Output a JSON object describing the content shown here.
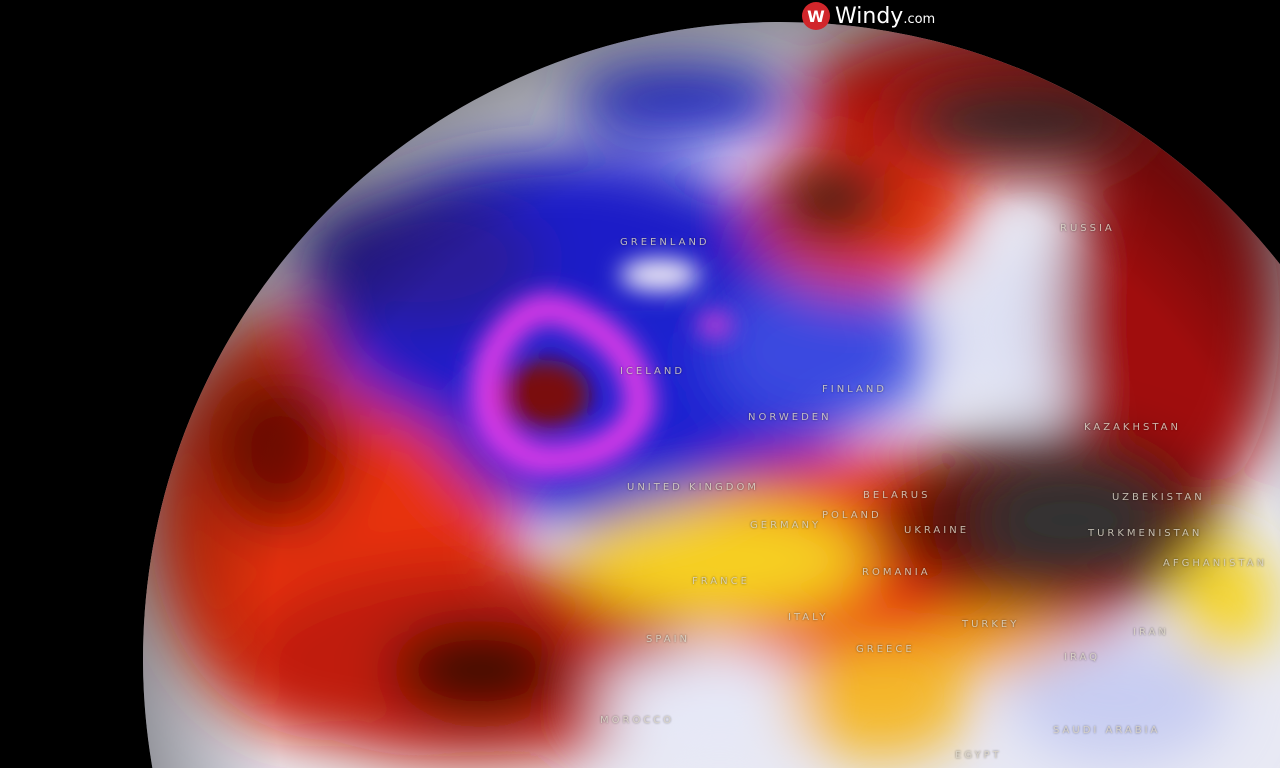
{
  "logo": {
    "name": "Windy",
    "tld": ".com",
    "mark": "W"
  },
  "colors": {
    "cold_extreme": "#d63de0",
    "cold": "#1a1fc4",
    "cool": "#e6e8f5",
    "warm": "#f5e02a",
    "hot": "#e32a10",
    "very_hot": "#6b0b06",
    "extreme": "#2a2a2a"
  },
  "map": {
    "layer": "temperature-anomaly",
    "labels": [
      {
        "text": "GREENLAND"
      },
      {
        "text": "RUSSIA"
      },
      {
        "text": "ICELAND"
      },
      {
        "text": "FINLAND"
      },
      {
        "text": "NORWEDEN"
      },
      {
        "text": "UNITED KINGDOM"
      },
      {
        "text": "BELARUS"
      },
      {
        "text": "POLAND"
      },
      {
        "text": "GERMANY"
      },
      {
        "text": "UKRAINE"
      },
      {
        "text": "KAZAKHSTAN"
      },
      {
        "text": "UZBEKISTAN"
      },
      {
        "text": "TURKMENISTAN"
      },
      {
        "text": "AFGHANISTAN"
      },
      {
        "text": "ROMANIA"
      },
      {
        "text": "FRANCE"
      },
      {
        "text": "ITALY"
      },
      {
        "text": "SPAIN"
      },
      {
        "text": "GREECE"
      },
      {
        "text": "TURKEY"
      },
      {
        "text": "IRAN"
      },
      {
        "text": "IRAQ"
      },
      {
        "text": "SAUDI ARABIA"
      },
      {
        "text": "EGYPT"
      },
      {
        "text": "MOROCCO"
      }
    ]
  }
}
